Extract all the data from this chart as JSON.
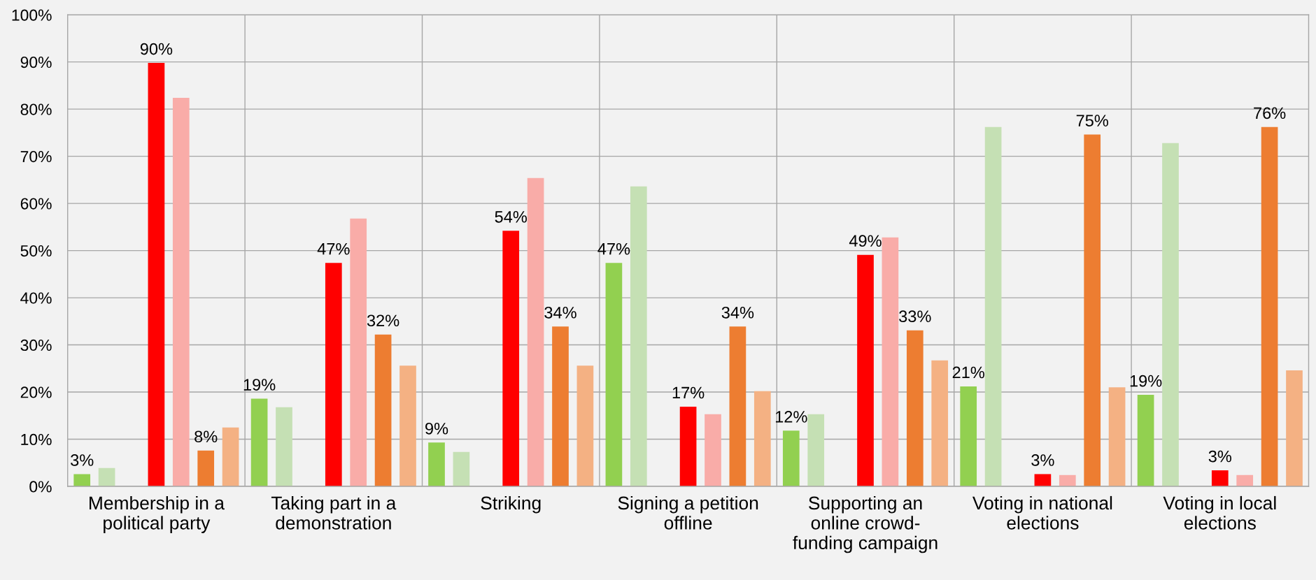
{
  "chart_data": {
    "type": "bar",
    "categories": [
      "Membership in a political party",
      "Taking part in a demonstration",
      "Striking",
      "Signing a petition offline",
      "Supporting an online crowd-funding campaign",
      "Voting in national elections",
      "Voting in local elections"
    ],
    "series": [
      {
        "color": "#92d050",
        "values": [
          2.6,
          18.6,
          9.3,
          47.4,
          11.8,
          21.2,
          19.4
        ],
        "value_labels": [
          "3%",
          "19%",
          "9%",
          "47%",
          "12%",
          "21%",
          "19%"
        ]
      },
      {
        "color": "#c5e0b4",
        "values": [
          3.9,
          16.8,
          7.3,
          63.6,
          15.3,
          76.2,
          72.8
        ]
      },
      {
        "values": [
          null,
          null,
          null,
          null,
          null,
          null,
          null
        ]
      },
      {
        "color": "#ff0000",
        "values": [
          89.8,
          47.4,
          54.2,
          16.9,
          49.1,
          2.6,
          3.4
        ],
        "value_labels": [
          "90%",
          "47%",
          "54%",
          "17%",
          "49%",
          "3%",
          "3%"
        ]
      },
      {
        "color": "#f9aca8",
        "values": [
          82.4,
          56.8,
          65.4,
          15.3,
          52.8,
          2.4,
          2.4
        ]
      },
      {
        "color": "#ed7d31",
        "values": [
          7.6,
          32.2,
          33.9,
          33.9,
          33.1,
          74.6,
          76.2
        ],
        "value_labels": [
          "8%",
          "32%",
          "34%",
          "34%",
          "33%",
          "75%",
          "76%"
        ]
      },
      {
        "color": "#f4b183",
        "values": [
          12.5,
          25.6,
          25.6,
          20.2,
          26.7,
          21.0,
          24.6
        ]
      }
    ],
    "ylim": [
      0,
      100
    ],
    "yticks": [
      {
        "value": 0,
        "label": "0%"
      },
      {
        "value": 10,
        "label": "10%"
      },
      {
        "value": 20,
        "label": "20%"
      },
      {
        "value": 30,
        "label": "30%"
      },
      {
        "value": 40,
        "label": "40%"
      },
      {
        "value": 50,
        "label": "50%"
      },
      {
        "value": 60,
        "label": "60%"
      },
      {
        "value": 70,
        "label": "70%"
      },
      {
        "value": 80,
        "label": "80%"
      },
      {
        "value": 90,
        "label": "90%"
      },
      {
        "value": 100,
        "label": "100%"
      }
    ],
    "grid": true
  }
}
